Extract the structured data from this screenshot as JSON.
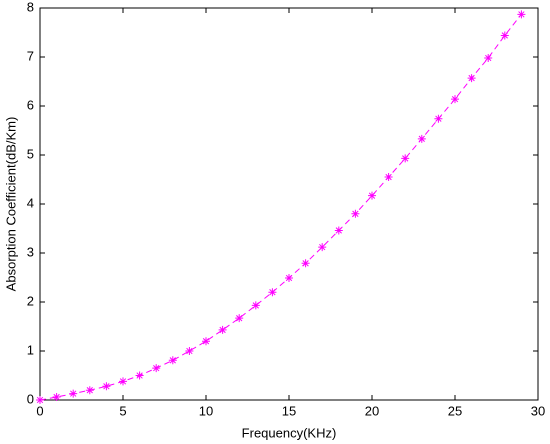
{
  "chart_data": {
    "type": "line",
    "xlabel": "Frequency(KHz)",
    "ylabel": "Absorption Coefficient(dB/Km)",
    "x": [
      0,
      1,
      2,
      3,
      4,
      5,
      6,
      7,
      8,
      9,
      10,
      11,
      12,
      13,
      14,
      15,
      16,
      17,
      18,
      19,
      20,
      21,
      22,
      23,
      24,
      25,
      26,
      27,
      28,
      29
    ],
    "series": [
      {
        "color": "#ff00ff",
        "marker": "*",
        "linestyle": "dashed",
        "values": [
          0,
          0.06,
          0.13,
          0.2,
          0.28,
          0.38,
          0.5,
          0.65,
          0.81,
          1.0,
          1.2,
          1.43,
          1.67,
          1.93,
          2.2,
          2.49,
          2.79,
          3.12,
          3.46,
          3.8,
          4.17,
          4.55,
          4.93,
          5.33,
          5.74,
          6.14,
          6.57,
          6.98,
          7.44,
          7.87
        ]
      }
    ],
    "xlim": [
      0,
      30
    ],
    "xticks": [
      0,
      5,
      10,
      15,
      20,
      25,
      30
    ],
    "ylim": [
      0,
      8
    ],
    "yticks": [
      0,
      1,
      2,
      3,
      4,
      5,
      6,
      7,
      8
    ],
    "grid": false
  }
}
